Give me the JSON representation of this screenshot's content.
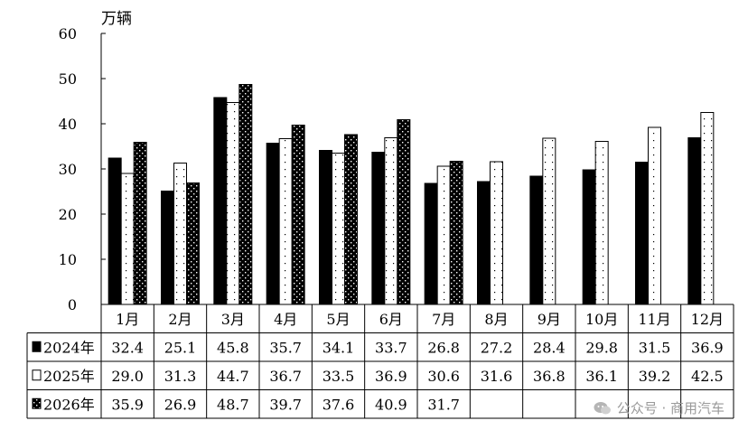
{
  "chart_data": {
    "type": "bar",
    "ylabel": "万辆",
    "ylim": [
      0,
      60
    ],
    "yticks": [
      "0",
      "10",
      "20",
      "30",
      "40",
      "50",
      "60"
    ],
    "categories": [
      "1月",
      "2月",
      "3月",
      "4月",
      "5月",
      "6月",
      "7月",
      "8月",
      "9月",
      "10月",
      "11月",
      "12月"
    ],
    "legend_position": "data-table-left",
    "series": [
      {
        "name": "2024年",
        "pattern": "solid-black",
        "color": "#000000",
        "values": [
          32.4,
          25.1,
          45.8,
          35.7,
          34.1,
          33.7,
          26.8,
          27.2,
          28.4,
          29.8,
          31.5,
          36.9
        ],
        "labels": [
          "32.4",
          "25.1",
          "45.8",
          "35.7",
          "34.1",
          "33.7",
          "26.8",
          "27.2",
          "28.4",
          "29.8",
          "31.5",
          "36.9"
        ]
      },
      {
        "name": "2025年",
        "pattern": "white-with-dots",
        "color": "#ffffff",
        "values": [
          29.0,
          31.3,
          44.7,
          36.7,
          33.5,
          36.9,
          30.6,
          31.6,
          36.8,
          36.1,
          39.2,
          42.5
        ],
        "labels": [
          "29.0",
          "31.3",
          "44.7",
          "36.7",
          "33.5",
          "36.9",
          "30.6",
          "31.6",
          "36.8",
          "36.1",
          "39.2",
          "42.5"
        ]
      },
      {
        "name": "2026年",
        "pattern": "black-with-white-dots",
        "color": "#000000",
        "values": [
          35.9,
          26.9,
          48.7,
          39.7,
          37.6,
          40.9,
          31.7,
          null,
          null,
          null,
          null,
          null
        ],
        "labels": [
          "35.9",
          "26.9",
          "48.7",
          "39.7",
          "37.6",
          "40.9",
          "31.7",
          "",
          "",
          "",
          "",
          ""
        ]
      }
    ],
    "grid": false
  },
  "watermark": {
    "text": "公众号 · 商用汽车",
    "icon": "wechat-icon"
  }
}
